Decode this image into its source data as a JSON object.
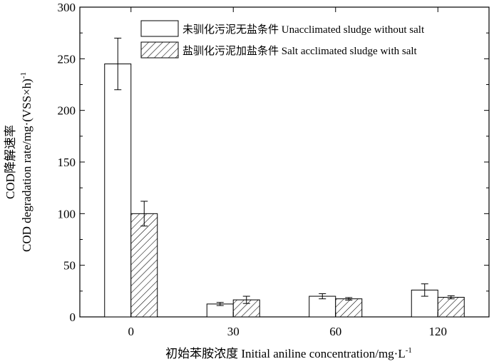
{
  "chart_data": {
    "type": "bar",
    "categories": [
      "0",
      "30",
      "60",
      "120"
    ],
    "series": [
      {
        "name": "未驯化污泥无盐条件 Unacclimated sludge without salt",
        "pattern": "open",
        "values": [
          245,
          12.5,
          20,
          26
        ],
        "errors": [
          25,
          1.5,
          2.5,
          6
        ]
      },
      {
        "name": "盐驯化污泥加盐条件 Salt acclimated sludge with salt",
        "pattern": "hatched",
        "values": [
          100,
          16.5,
          17.5,
          19
        ],
        "errors": [
          12,
          3.5,
          1.2,
          1.5
        ]
      }
    ],
    "xlabel": "初始苯胺浓度 Initial aniline concentration/mg·L",
    "xlabel_sup": "-1",
    "ylabel_line1": "COD降解速率",
    "ylabel_line2": "COD degradation rate/mg·(VSS×h)",
    "ylabel_sup": "-1",
    "ylim": [
      0,
      300
    ],
    "yticks": [
      0,
      50,
      100,
      150,
      200,
      250,
      300
    ],
    "legend_position": "top-right",
    "grid": false,
    "colors": {
      "axis": "#000000",
      "bar_fill": "#ffffff",
      "hatch": "#000000"
    }
  }
}
